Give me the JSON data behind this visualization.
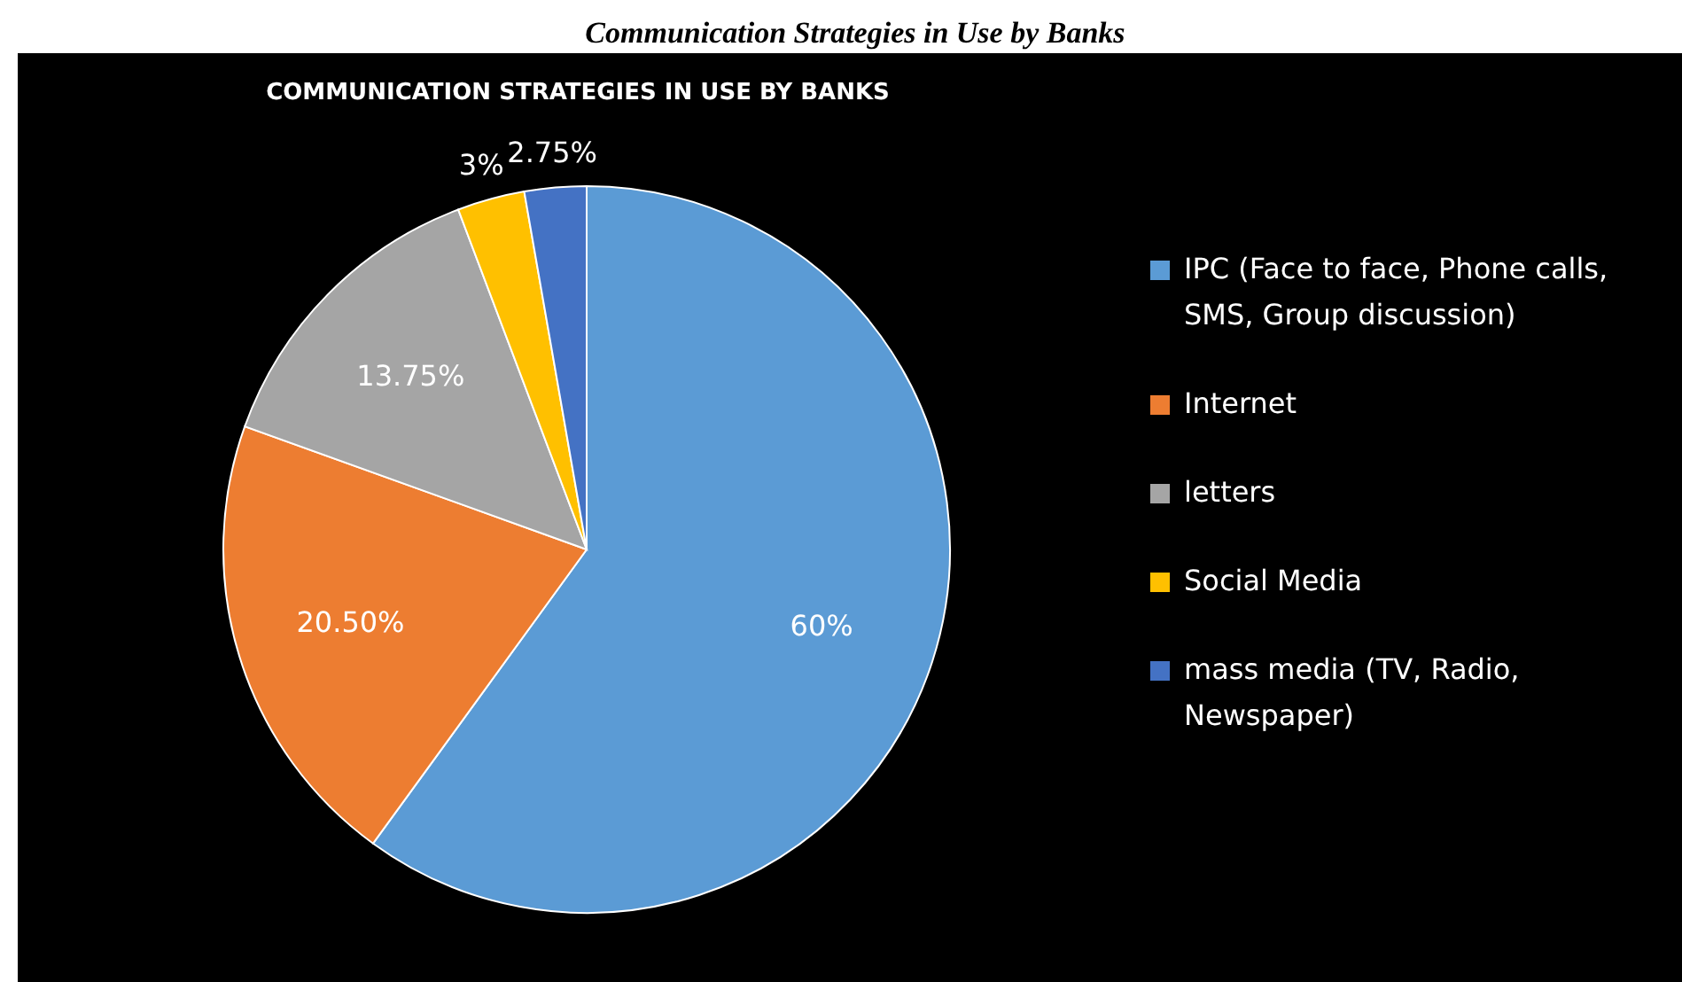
{
  "chart_data": {
    "type": "pie",
    "title": "Communication Strategies in Use by Banks",
    "subtitle": "COMMUNICATION STRATEGIES IN USE BY BANKS",
    "categories": [
      "IPC (Face to face, Phone calls, SMS, Group discussion)",
      "Internet",
      "letters",
      "Social Media",
      "mass media (TV, Radio, Newspaper)"
    ],
    "values": [
      60,
      20.5,
      13.75,
      3,
      2.75
    ],
    "colors": [
      "#5b9bd5",
      "#ed7d31",
      "#a5a5a5",
      "#ffc000",
      "#4472c4"
    ],
    "value_labels": [
      "60%",
      "20.50%",
      "13.75%",
      "3%",
      "2.75%"
    ],
    "legend": "right"
  }
}
